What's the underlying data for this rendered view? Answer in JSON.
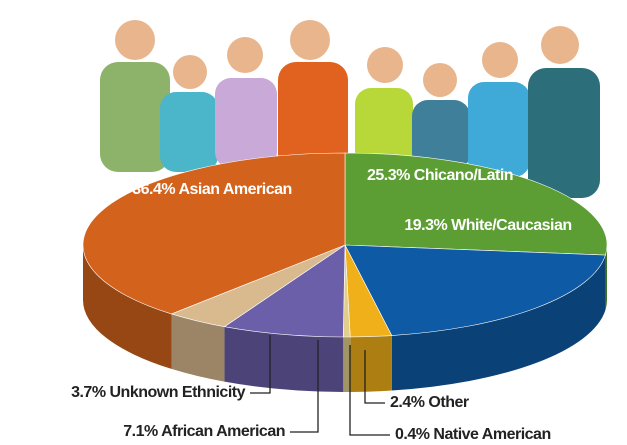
{
  "chart_data": {
    "type": "pie",
    "values": [
      25.3,
      19.3,
      2.4,
      0.4,
      7.1,
      3.7,
      36.4
    ],
    "value_labels": [
      "25.3% Chicano/Latin",
      "19.3% White/Caucasian",
      "2.4% Other",
      "0.4% Native American",
      "7.1% African American",
      "3.7% Unknown Ethnicity",
      "36.4% Asian American"
    ],
    "colors": [
      "#5c9e34",
      "#0e5aa5",
      "#f0b01a",
      "#e0cf8c",
      "#6a5fa8",
      "#d9b98e",
      "#d2621c"
    ]
  }
}
